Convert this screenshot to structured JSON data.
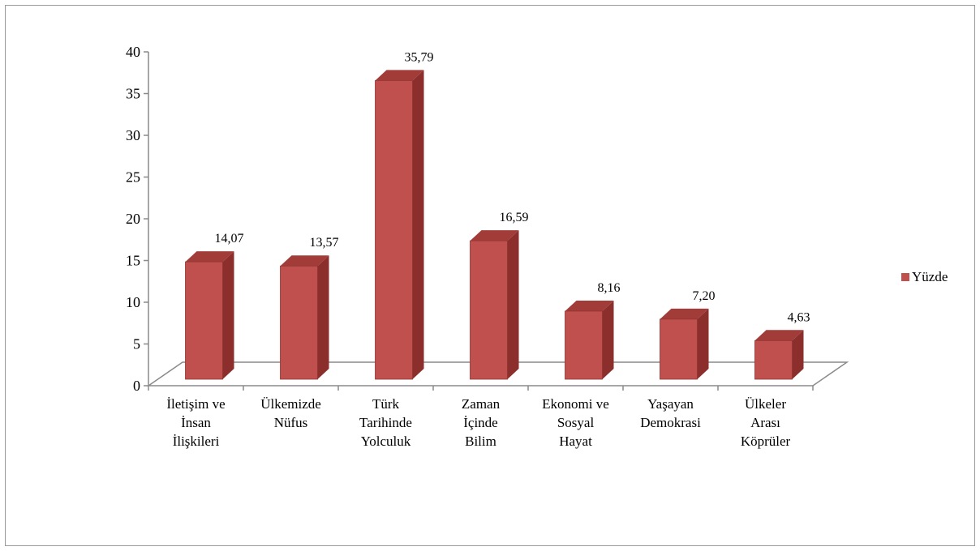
{
  "chart_data": {
    "type": "bar",
    "style": "3d-column",
    "categories": [
      [
        "İletişim ve",
        "İnsan",
        "İlişkileri"
      ],
      [
        "Ülkemizde",
        "Nüfus"
      ],
      [
        "Türk",
        "Tarihinde",
        "Yolculuk"
      ],
      [
        "Zaman",
        "İçinde",
        "Bilim"
      ],
      [
        "Ekonomi ve",
        "Sosyal",
        "Hayat"
      ],
      [
        "Yaşayan",
        "Demokrasi"
      ],
      [
        "Ülkeler",
        "Arası",
        "Köprüler"
      ]
    ],
    "series": [
      {
        "name": "Yüzde",
        "values": [
          14.07,
          13.57,
          35.79,
          16.59,
          8.16,
          7.2,
          4.63
        ],
        "labels": [
          "14,07",
          "13,57",
          "35,79",
          "16,59",
          "8,16",
          "7,20",
          "4,63"
        ]
      }
    ],
    "ylim": [
      0,
      40
    ],
    "yticks": [
      0,
      5,
      10,
      15,
      20,
      25,
      30,
      35,
      40
    ],
    "grid": false,
    "legend_position": "right",
    "colors": {
      "front": "#c0504d",
      "side": "#8b2e2c",
      "top": "#a23c39",
      "front_stroke": "#8f3533",
      "axis": "#8a8a8a"
    }
  }
}
